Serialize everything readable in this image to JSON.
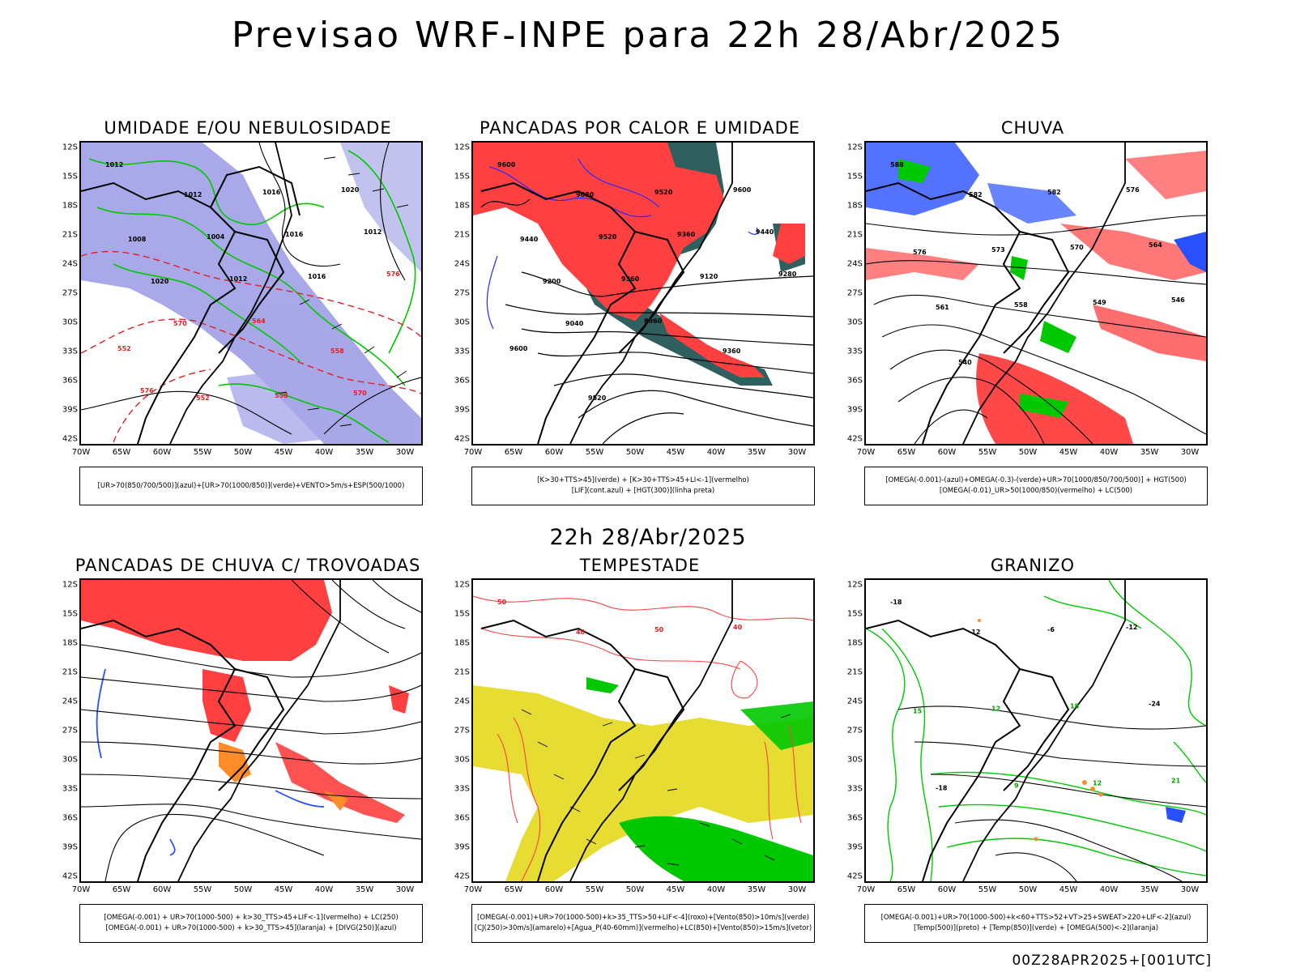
{
  "main_title": "Previsao WRF-INPE  para 22h 28/Abr/2025",
  "subtitle": "22h 28/Abr/2025",
  "footer": "00Z28APR2025+[001UTC]",
  "lat_ticks": [
    "12S",
    "15S",
    "18S",
    "21S",
    "24S",
    "27S",
    "30S",
    "33S",
    "36S",
    "39S",
    "42S"
  ],
  "lon_ticks": [
    "70W",
    "65W",
    "60W",
    "55W",
    "50W",
    "45W",
    "40W",
    "35W",
    "30W"
  ],
  "colors": {
    "blue_fill": "#9a9ae6",
    "green": "#00c800",
    "red": "#ff4040",
    "dark_teal": "#2f5f5f",
    "yellow": "#e6dc32",
    "orange": "#ff8c28",
    "blue": "#2850ff"
  },
  "panels": [
    {
      "title": "UMIDADE E/OU NEBULOSIDADE",
      "legend": [
        "[UR>70(850/700/500)](azul)+[UR>70(1000/850)](verde)+VENTO>5m/s+ESP(500/1000)"
      ],
      "labels": [
        "1012",
        "1012",
        "1016",
        "1020",
        "1008",
        "1004",
        "1016",
        "1012",
        "1020",
        "1012",
        "1016",
        "576",
        "570",
        "564",
        "558",
        "552",
        "552",
        "558",
        "570",
        "576"
      ]
    },
    {
      "title": "PANCADAS POR CALOR E UMIDADE",
      "legend": [
        "[K>30+TTS>45](verde)  +  [K>30+TTS>45+LI<-1](vermelho)",
        "[LIF](cont.azul)  +  [HGT(300)](linha preta)"
      ],
      "labels": [
        "9600",
        "9680",
        "9520",
        "9600",
        "9440",
        "9520",
        "9360",
        "9440",
        "9200",
        "9360",
        "9120",
        "9280",
        "9040",
        "8960",
        "9360",
        "9600",
        "9520"
      ]
    },
    {
      "title": "CHUVA",
      "legend": [
        "[OMEGA(-0.001)-(azul)+OMEGA(-0.3)-(verde)+UR>70(1000/850/700/500)]  +  HGT(500)",
        "[OMEGA(-0.01)_UR>50(1000/850)(vermelho)  +  LC(500)"
      ],
      "labels": [
        "588",
        "582",
        "582",
        "576",
        "576",
        "573",
        "570",
        "564",
        "561",
        "558",
        "549",
        "546",
        "540"
      ]
    },
    {
      "title": "PANCADAS DE CHUVA C/ TROVOADAS",
      "legend": [
        "[OMEGA(-0.001)  +  UR>70(1000-500)  +  k>30_TTS>45+LIF<-1](vermelho)  +  LC(250)",
        "[OMEGA(-0.001)  +  UR>70(1000-500)  +  k>30_TTS>45](laranja)  +  [DIVG(250)](azul)"
      ],
      "labels": []
    },
    {
      "title": "TEMPESTADE",
      "legend": [
        "[OMEGA(-0.001)+UR>70(1000-500)+k>35_TTS>50+LIF<-4](roxo)+[Vento(850)>10m/s](verde)",
        "[CJ(250)>30m/s](amarelo)+[Agua_P(40-60mm)](vermelho)+LC(850)+[Vento(850)>15m/s](vetor)"
      ],
      "labels": [
        "50",
        "40",
        "50",
        "40"
      ]
    },
    {
      "title": "GRANIZO",
      "legend": [
        "[OMEGA(-0.001)+UR>70(1000-500)+k<60+TTS>52+VT>25+SWEAT>220+LIF<-2](azul)",
        "[Temp(500)](preto)  +  [Temp(850)](verde)  +  [OMEGA(500)<-2](laranja)"
      ],
      "labels": [
        "-18",
        "-12",
        "-6",
        "-12",
        "15",
        "12",
        "18",
        "-24",
        "-18",
        "9",
        "12",
        "21"
      ]
    }
  ]
}
